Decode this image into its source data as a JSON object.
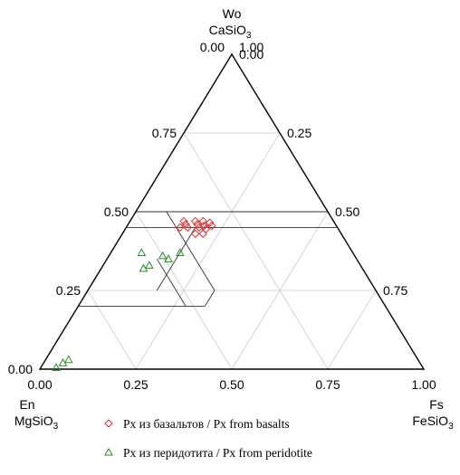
{
  "chart_data": {
    "type": "scatter",
    "subtype": "ternary",
    "vertices": {
      "top": {
        "name": "Wo",
        "formula": "CaSiO",
        "sub": "3"
      },
      "left": {
        "name": "En",
        "formula": "MgSiO",
        "sub": "3"
      },
      "right": {
        "name": "Fs",
        "formula": "FeSiO",
        "sub": "3"
      }
    },
    "ticks": [
      0,
      0.25,
      0.5,
      0.75,
      1
    ],
    "tick_labels": [
      "0.00",
      "0.25",
      "0.50",
      "0.75",
      "1.00"
    ],
    "grid": true,
    "series": [
      {
        "name": "Px из базальтов / Px from basalts",
        "marker": "diamond",
        "color": "#e03030",
        "points": [
          {
            "wo": 0.47,
            "fs": 0.14
          },
          {
            "wo": 0.47,
            "fs": 0.17
          },
          {
            "wo": 0.47,
            "fs": 0.19
          },
          {
            "wo": 0.465,
            "fs": 0.21
          },
          {
            "wo": 0.46,
            "fs": 0.15
          },
          {
            "wo": 0.46,
            "fs": 0.18
          },
          {
            "wo": 0.455,
            "fs": 0.2
          },
          {
            "wo": 0.455,
            "fs": 0.22
          },
          {
            "wo": 0.45,
            "fs": 0.14
          },
          {
            "wo": 0.45,
            "fs": 0.16
          },
          {
            "wo": 0.45,
            "fs": 0.19
          },
          {
            "wo": 0.445,
            "fs": 0.21
          },
          {
            "wo": 0.43,
            "fs": 0.19
          },
          {
            "wo": 0.43,
            "fs": 0.21
          }
        ]
      },
      {
        "name": "Px из перидотита / Px from peridotite",
        "marker": "triangle",
        "color": "#2a8a2a",
        "points": [
          {
            "wo": 0.37,
            "fs": 0.08
          },
          {
            "wo": 0.36,
            "fs": 0.14
          },
          {
            "wo": 0.37,
            "fs": 0.18
          },
          {
            "wo": 0.35,
            "fs": 0.16
          },
          {
            "wo": 0.33,
            "fs": 0.12
          },
          {
            "wo": 0.32,
            "fs": 0.11
          },
          {
            "wo": 0.02,
            "fs": 0.05
          },
          {
            "wo": 0.03,
            "fs": 0.06
          },
          {
            "wo": 0.005,
            "fs": 0.04
          }
        ]
      }
    ],
    "field_outlines": [
      [
        {
          "wo": 0.5,
          "fs": 0
        },
        {
          "wo": 0.5,
          "fs": 0.5
        }
      ],
      [
        {
          "wo": 0.5,
          "fs": 0.5
        },
        {
          "wo": 0.45,
          "fs": 0.55
        }
      ],
      [
        {
          "wo": 0.5,
          "fs": 0.08
        },
        {
          "wo": 0.25,
          "fs": 0.33
        }
      ],
      [
        {
          "wo": 0.45,
          "fs": 0
        },
        {
          "wo": 0.45,
          "fs": 0.55
        }
      ],
      [
        {
          "wo": 0.2,
          "fs": 0
        },
        {
          "wo": 0.2,
          "fs": 0.33
        }
      ],
      [
        {
          "wo": 0.25,
          "fs": 0.33
        },
        {
          "wo": 0.2,
          "fs": 0.33
        }
      ],
      [
        {
          "wo": 0.45,
          "fs": 0.18
        },
        {
          "wo": 0.25,
          "fs": 0.18
        }
      ],
      [
        {
          "wo": 0.35,
          "fs": 0.13
        },
        {
          "wo": 0.2,
          "fs": 0.28
        }
      ]
    ]
  }
}
